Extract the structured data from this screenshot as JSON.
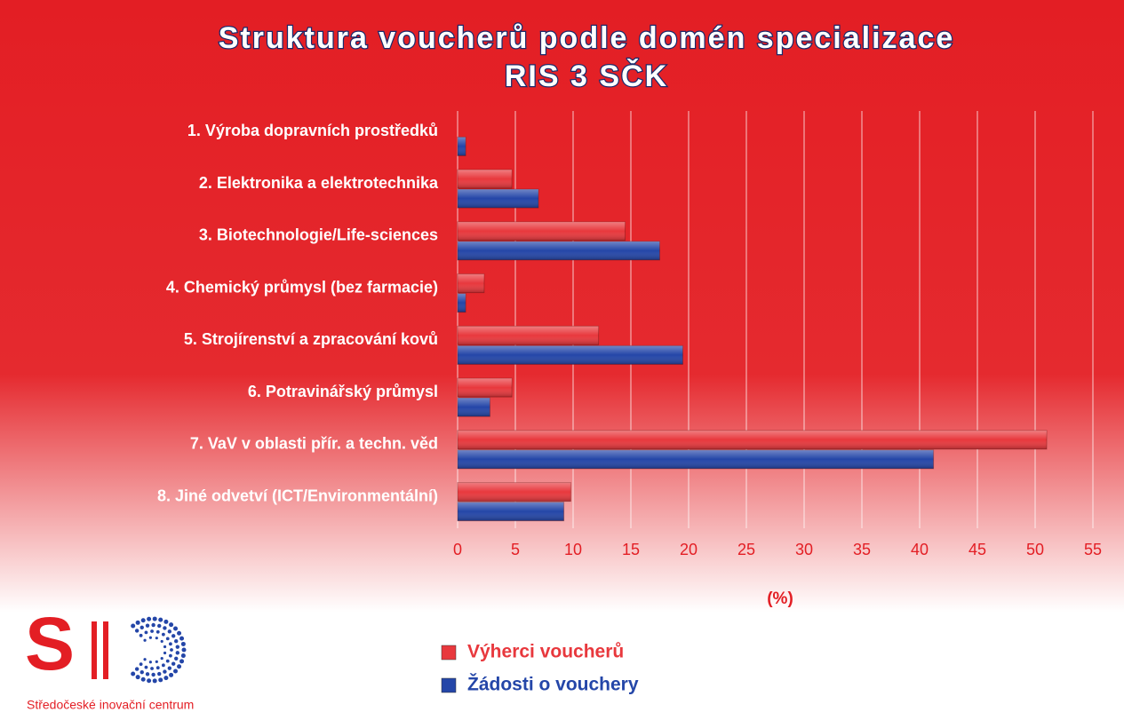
{
  "chart_data": {
    "type": "bar",
    "orientation": "horizontal",
    "title": "Struktura voucherů podle domén specializace",
    "subtitle": "RIS 3 SČK",
    "x_label": "(%)",
    "categories": [
      "1. Výroba dopravních prostředků",
      "2. Elektronika a elektrotechnika",
      "3. Biotechnologie/Life-sciences",
      "4. Chemický průmysl (bez farmacie)",
      "5. Strojírenství a zpracování kovů",
      "6. Potravinářský průmysl",
      "7. VaV v oblasti přír. a techn. věd",
      "8. Jiné odvetví (ICT/Environmentální)"
    ],
    "series": [
      {
        "name": "Výherci voucherů",
        "color": "#e8383d",
        "values": [
          0,
          4.7,
          14.5,
          2.3,
          12.2,
          4.7,
          51,
          9.8
        ]
      },
      {
        "name": "Žádosti o vouchery",
        "color": "#2446a8",
        "values": [
          0.7,
          7,
          17.5,
          0.7,
          19.5,
          2.8,
          41.2,
          9.2
        ]
      }
    ],
    "xlim": [
      0,
      55
    ],
    "xticks": [
      0,
      5,
      10,
      15,
      20,
      25,
      30,
      35,
      40,
      45,
      50,
      55
    ],
    "grid": true
  },
  "logo": {
    "letter_s": "S",
    "caption": "Středočeské inovační centrum"
  }
}
